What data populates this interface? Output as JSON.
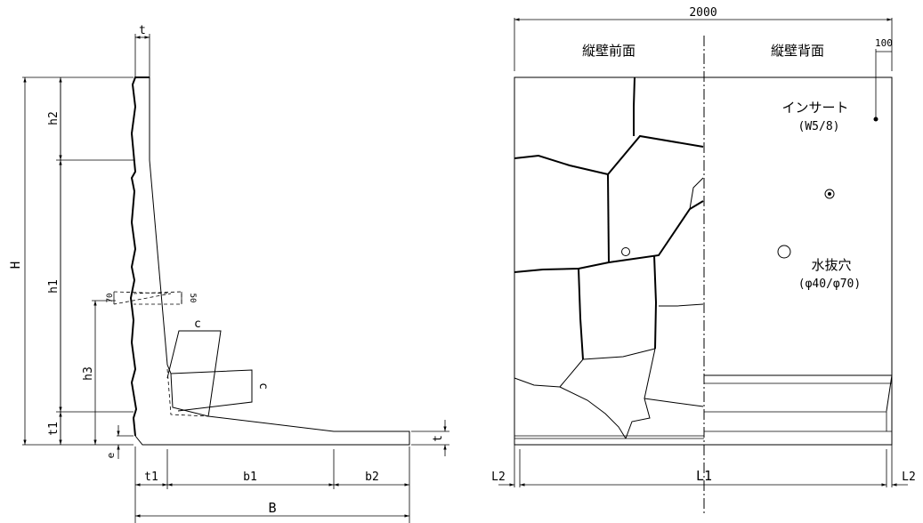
{
  "section": {
    "dims": {
      "t_top": "t",
      "H": "H",
      "h2": "h2",
      "h1": "h1",
      "h3": "h3",
      "t1_left": "t1",
      "e": "e",
      "t_right": "t",
      "t1_bottom": "t1",
      "b1": "b1",
      "b2": "b2",
      "B": "B",
      "c_top": "c",
      "c_side": "c",
      "d70": "70",
      "d50": "50"
    }
  },
  "elevation": {
    "total_width": "2000",
    "front_label": "縦壁前面",
    "back_label": "縦壁背面",
    "offset_100": "100",
    "insert_label": "インサート",
    "insert_spec": "(W5/8)",
    "drain_label": "水抜穴",
    "drain_spec": "(φ40/φ70)",
    "L2_left": "L2",
    "L1": "L1",
    "L2_right": "L2"
  }
}
